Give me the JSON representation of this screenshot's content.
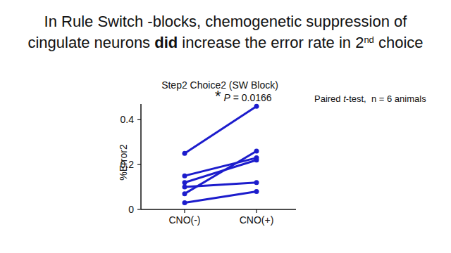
{
  "slide_title": {
    "lines": [
      [
        {
          "text": "In Rule Switch -blocks, chemogenetic suppression of"
        }
      ],
      [
        {
          "text": "cingulate neurons "
        },
        {
          "text": "did",
          "style": "bold"
        },
        {
          "text": " increase the error rate in 2"
        },
        {
          "text": "nd",
          "style": "superscript"
        },
        {
          "text": " choice"
        }
      ]
    ]
  },
  "chart_data": {
    "type": "line",
    "title": "Step2 Choice2 (SW Block)",
    "y_label": "%Error2",
    "categories": [
      "CNO(-)",
      "CNO(+)"
    ],
    "color": "#1c1ccc",
    "marker": "circle",
    "line_style": "solid",
    "grid": false,
    "series": [
      {
        "values": [
          0.25,
          0.46
        ]
      },
      {
        "values": [
          0.15,
          0.23
        ]
      },
      {
        "values": [
          0.12,
          0.22
        ]
      },
      {
        "values": [
          0.07,
          0.26
        ]
      },
      {
        "values": [
          0.1,
          0.12
        ]
      },
      {
        "values": [
          0.03,
          0.08
        ]
      }
    ],
    "ylim": [
      0,
      0.47
    ],
    "yticks": [
      0,
      0.2,
      0.4
    ],
    "annotations": [
      {
        "parts": [
          {
            "text": "*",
            "style": "large"
          },
          {
            "text": " "
          },
          {
            "text": "P",
            "style": "italic"
          },
          {
            "text": " = 0.0166"
          }
        ]
      },
      {
        "parts": [
          {
            "text": "Paired "
          },
          {
            "text": "t",
            "style": "italic"
          },
          {
            "text": "-test,  n = 6 animals"
          }
        ]
      }
    ]
  }
}
